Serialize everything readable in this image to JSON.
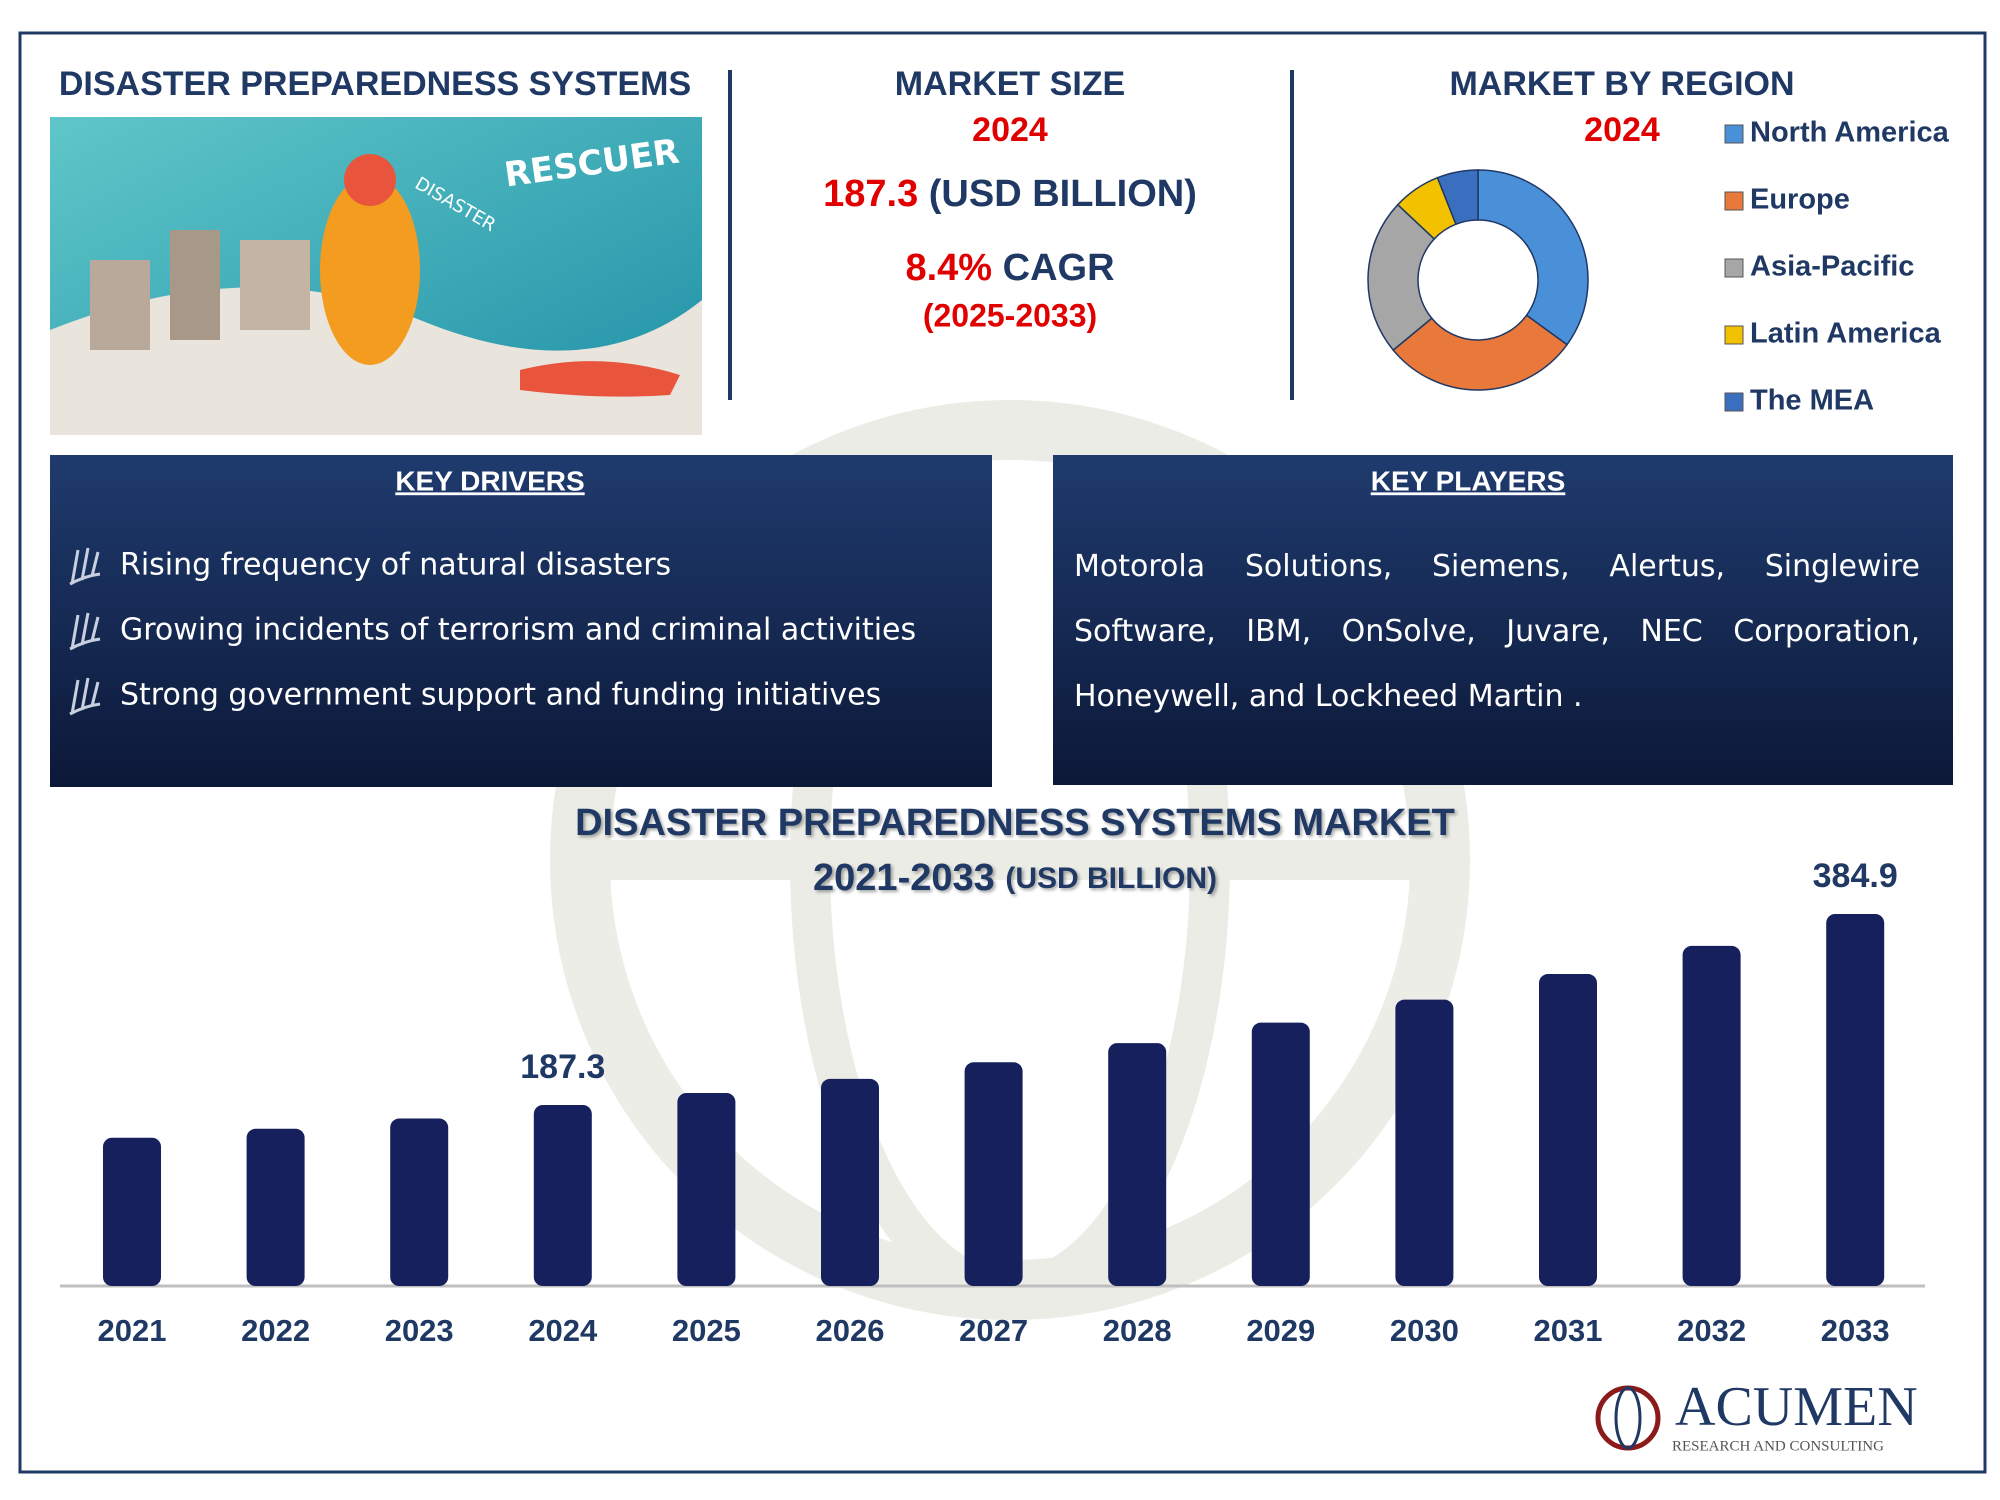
{
  "header": {
    "title": "DISASTER PREPAREDNESS SYSTEMS",
    "illustration_text": [
      "RESCUER",
      "DISASTER"
    ]
  },
  "market_size": {
    "title": "MARKET SIZE",
    "year": "2024",
    "value": 187.3,
    "unit": "(USD BILLION)",
    "cagr": "8.4%",
    "cagr_label": "CAGR",
    "period": "(2025-2033)"
  },
  "key_drivers": {
    "title": "KEY DRIVERS",
    "items": [
      "Rising frequency of natural disasters",
      "Growing incidents of terrorism and criminal activities",
      "Strong government support and funding initiatives"
    ]
  },
  "key_players": {
    "title": "KEY PLAYERS",
    "text": "Motorola Solutions, Siemens, Alertus, Singlewire Software, IBM, OnSolve, Juvare, NEC Corporation, Honeywell, and Lockheed Martin ."
  },
  "logo": {
    "name": "ACUMEN",
    "tagline": "RESEARCH AND CONSULTING"
  },
  "chart_data": [
    {
      "type": "bar",
      "title": "DISASTER PREPAREDNESS SYSTEMS MARKET",
      "subtitle": "2021-2033",
      "unit": "(USD BILLION)",
      "categories": [
        "2021",
        "2022",
        "2023",
        "2024",
        "2025",
        "2026",
        "2027",
        "2028",
        "2029",
        "2030",
        "2031",
        "2032",
        "2033"
      ],
      "values": [
        153.4,
        162.7,
        173.3,
        187.3,
        199.7,
        214.3,
        231.5,
        251.3,
        272.5,
        296.3,
        322.8,
        351.9,
        384.9
      ],
      "show_value_label": [
        false,
        false,
        false,
        true,
        false,
        false,
        false,
        false,
        false,
        false,
        false,
        false,
        true
      ],
      "color": "#15205c"
    },
    {
      "type": "pie",
      "title": "MARKET BY REGION",
      "subtitle": "2024",
      "categories": [
        "North America",
        "Europe",
        "Asia-Pacific",
        "Latin America",
        "The MEA"
      ],
      "values": [
        35,
        29,
        23,
        7,
        6
      ],
      "colors": [
        "#4a90d9",
        "#e8793a",
        "#a6a6a6",
        "#f2c200",
        "#3a6fc0"
      ]
    }
  ]
}
